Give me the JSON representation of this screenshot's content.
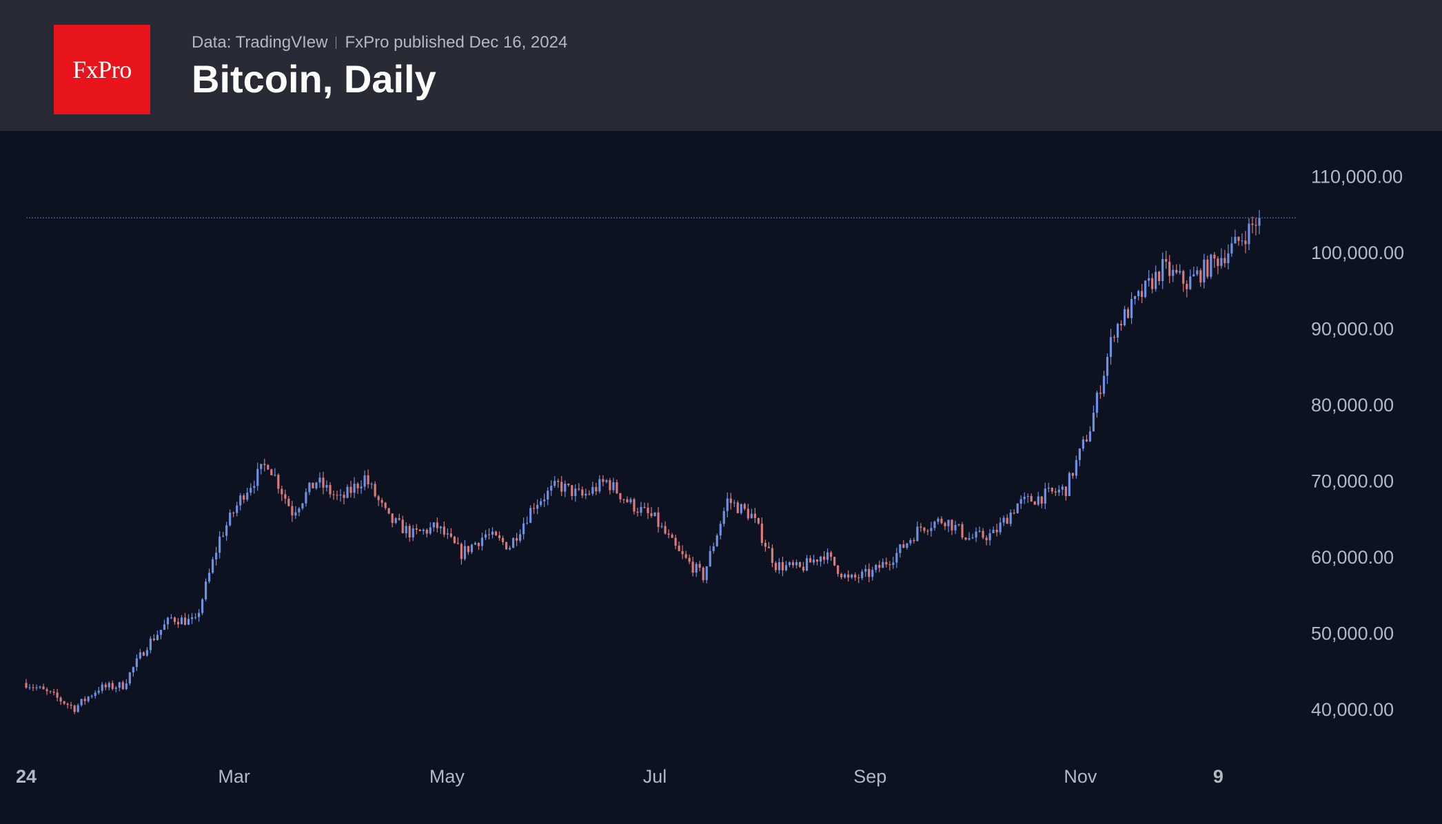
{
  "header": {
    "logo_text": "FxPro",
    "source": "Data: TradingVIew",
    "publisher": "FxPro published Dec 16, 2024",
    "title": "Bitcoin, Daily"
  },
  "colors": {
    "background": "#0c1220",
    "header_bg": "#282b36",
    "logo_bg": "#e8141c",
    "up": "#6f8fe0",
    "down": "#d9797a",
    "price_line": "#5875b8"
  },
  "chart_data": {
    "type": "candlestick",
    "title": "Bitcoin, Daily",
    "ylim": [
      35000,
      112000
    ],
    "yticks": [
      40000,
      50000,
      60000,
      70000,
      80000,
      90000,
      100000,
      110000
    ],
    "ytick_labels": [
      "40,000.00",
      "50,000.00",
      "60,000.00",
      "70,000.00",
      "80,000.00",
      "90,000.00",
      "100,000.00",
      "110,000.00"
    ],
    "xtick_labels": [
      {
        "label": "24",
        "week": 0,
        "bold": true
      },
      {
        "label": "Mar",
        "week": 8.6
      },
      {
        "label": "May",
        "week": 17.4
      },
      {
        "label": "Jul",
        "week": 26
      },
      {
        "label": "Sep",
        "week": 34.9
      },
      {
        "label": "Nov",
        "week": 43.6
      },
      {
        "label": "9",
        "week": 49.3,
        "bold": true
      }
    ],
    "last_price": 104600,
    "weekly_closes": [
      43500,
      42000,
      40200,
      42800,
      43200,
      48500,
      52000,
      51500,
      62500,
      68500,
      72500,
      66000,
      70000,
      67500,
      70500,
      65000,
      63000,
      64000,
      60500,
      63000,
      61500,
      67000,
      69500,
      68000,
      70000,
      67000,
      65000,
      60500,
      57500,
      67500,
      65500,
      59000,
      58500,
      60500,
      57000,
      58000,
      60500,
      64000,
      65000,
      62500,
      63000,
      67000,
      68000,
      69000,
      77000,
      90000,
      94000,
      98000,
      96000,
      98500,
      101000,
      104600
    ]
  }
}
